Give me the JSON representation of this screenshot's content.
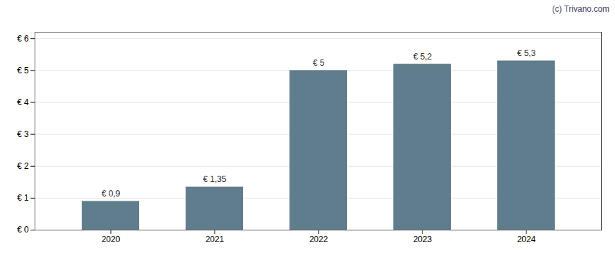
{
  "chart_data": {
    "type": "bar",
    "categories": [
      "2020",
      "2021",
      "2022",
      "2023",
      "2024"
    ],
    "values": [
      0.9,
      1.35,
      5.0,
      5.2,
      5.3
    ],
    "value_labels": [
      "€ 0,9",
      "€ 1,35",
      "€ 5",
      "€ 5,2",
      "€ 5,3"
    ],
    "data_labels": true,
    "color": "#5f7d8c",
    "ylim": [
      0,
      6.2
    ],
    "yticks": [
      {
        "value": 0,
        "label": "€ 0"
      },
      {
        "value": 1,
        "label": "€ 1"
      },
      {
        "value": 2,
        "label": "€ 2"
      },
      {
        "value": 3,
        "label": "€ 3"
      },
      {
        "value": 4,
        "label": "€ 4"
      },
      {
        "value": 5,
        "label": "€ 5"
      },
      {
        "value": 6,
        "label": "€ 6"
      }
    ],
    "grid": true,
    "annotations": [
      {
        "text": "(c) Trivano.com",
        "color": "#4a4a6a"
      }
    ]
  }
}
